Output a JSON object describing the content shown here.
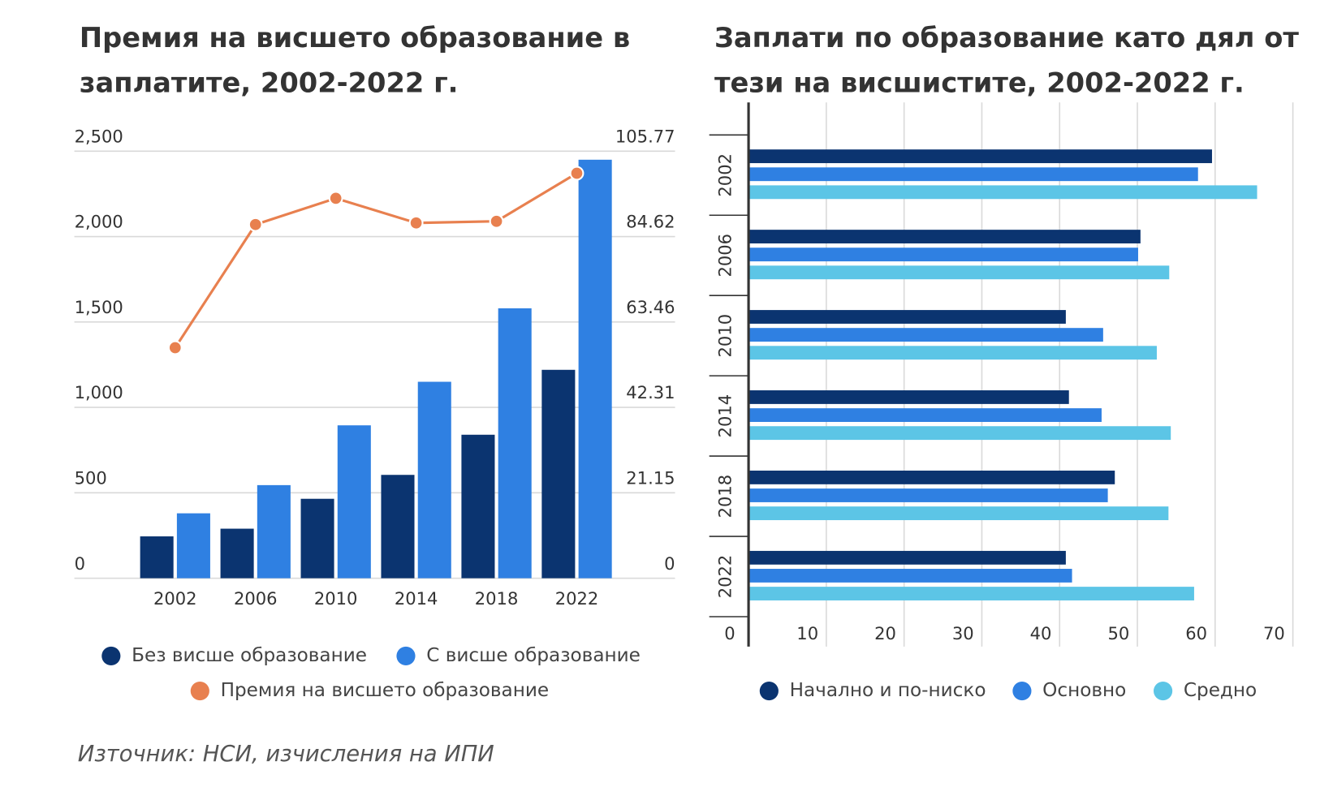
{
  "chart_data": [
    {
      "type": "bar",
      "title": "Премия на висшето образование в заплатите, 2002-2022 г.",
      "categories": [
        "2002",
        "2006",
        "2010",
        "2014",
        "2018",
        "2022"
      ],
      "series": [
        {
          "name": "Без висше образование",
          "color": "#0b3470",
          "values": [
            245,
            290,
            465,
            605,
            840,
            1220
          ]
        },
        {
          "name": "С висше образование",
          "color": "#2f80e2",
          "values": [
            380,
            545,
            895,
            1150,
            1580,
            2450
          ]
        },
        {
          "name": "Премия на висшето образование",
          "color": "#e8804f",
          "type": "line",
          "axis": "y2",
          "values": [
            57.1,
            87.6,
            94.1,
            88.0,
            88.4,
            100.3
          ]
        }
      ],
      "ylim": [
        0,
        2500
      ],
      "yticks": [
        0,
        {
          "value": 500,
          "label": "500"
        },
        {
          "value": 1000,
          "label": "1,000"
        },
        {
          "value": 1500,
          "label": "1,500"
        },
        {
          "value": 2000,
          "label": "2,000"
        },
        {
          "value": 2500,
          "label": "2,500"
        }
      ],
      "y2lim": [
        0,
        105.77
      ],
      "y2ticks": [
        0,
        21.15,
        42.31,
        63.46,
        84.62,
        105.77
      ],
      "grid": true
    },
    {
      "type": "barh",
      "title": "Заплати по образование като дял от тези на висшистите, 2002-2022 г.",
      "categories": [
        "2002",
        "2006",
        "2010",
        "2014",
        "2018",
        "2022"
      ],
      "series": [
        {
          "name": "Начално и по-ниско",
          "color": "#0b3470",
          "values": [
            59.6,
            50.4,
            40.8,
            41.2,
            47.1,
            40.8
          ]
        },
        {
          "name": "Основно",
          "color": "#2f80e2",
          "values": [
            57.8,
            50.1,
            45.6,
            45.4,
            46.2,
            41.6
          ]
        },
        {
          "name": "Средно",
          "color": "#5cc5e6",
          "values": [
            65.4,
            54.1,
            52.5,
            54.3,
            54.0,
            57.3
          ]
        }
      ],
      "xlim": [
        0,
        70
      ],
      "xticks": [
        0,
        10,
        20,
        30,
        40,
        50,
        60,
        70
      ],
      "grid": true
    }
  ],
  "source": "Източник: НСИ, изчисления на ИПИ"
}
